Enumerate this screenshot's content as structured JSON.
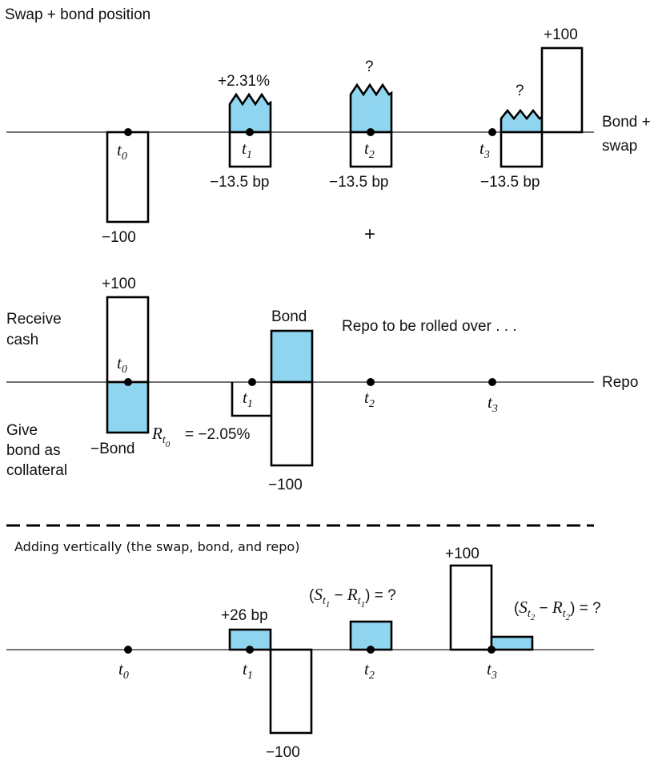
{
  "panel1": {
    "title": "Swap + bond position",
    "axis_label_line1": "Bond +",
    "axis_label_line2": "swap",
    "t1_value": "+2.31%",
    "q_t2": "?",
    "q_t3": "?",
    "plus100": "+100",
    "minus100": "−100",
    "bp_t1": "−13.5 bp",
    "bp_t2": "−13.5 bp",
    "bp_t3": "−13.5 bp",
    "plus_sign": "+"
  },
  "panel2": {
    "plus100": "+100",
    "receive_line1": "Receive",
    "receive_line2": "cash",
    "bond_label": "Bond",
    "repo_note": "Repo to be rolled over . . .",
    "axis_label": "Repo",
    "give_line1": "Give",
    "give_line2": "bond as",
    "give_line3": "collateral",
    "minus_bond": "−Bond",
    "rate_text": "= −2.05%",
    "minus100": "−100"
  },
  "panel3": {
    "title": "Adding vertically (the swap, bond, and repo)",
    "plus100": "+100",
    "plus26": "+26 bp",
    "minus100": "−100",
    "expr1_suffix": ") = ?",
    "expr2_suffix": ") = ?"
  },
  "time_labels": {
    "sym": "t",
    "i0": "0",
    "i1": "1",
    "i2": "2",
    "i3": "3",
    "S": "S",
    "R": "R",
    "open": "(",
    "minus": " − "
  },
  "colors": {
    "fill": "#8fd5f0",
    "stroke": "#000000"
  }
}
